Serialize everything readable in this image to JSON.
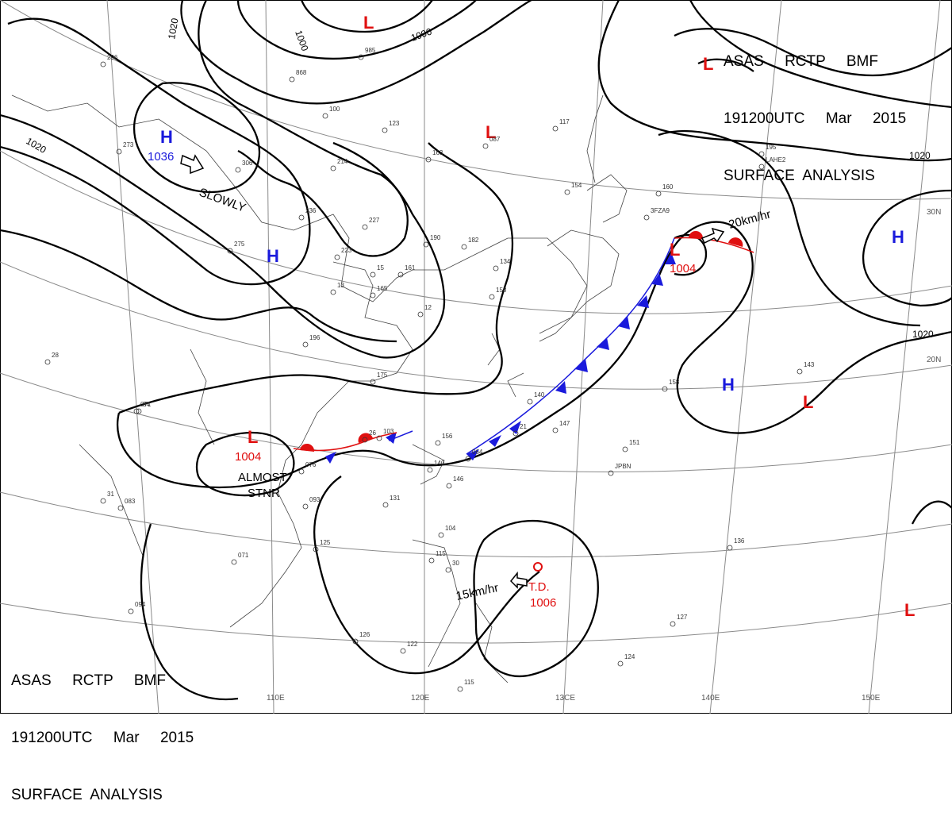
{
  "header": {
    "line1": "ASAS     RCTP     BMF",
    "line2": "191200UTC     Mar     2015",
    "line3": "SURFACE  ANALYSIS"
  },
  "colors": {
    "high": "#1a1adc",
    "low": "#e01010",
    "front_cold": "#1a1adc",
    "front_warm": "#e01010",
    "isobar": "#000000",
    "grid": "#808080"
  },
  "longitude_labels": [
    "110E",
    "120E",
    "13CE",
    "140E",
    "150E"
  ],
  "latitude_labels": [
    "30N",
    "20N"
  ],
  "isobar_labels": [
    "1020",
    "1020",
    "1000",
    "1000",
    "1020",
    "1020"
  ],
  "pressure_systems": [
    {
      "type": "H",
      "value": "1036",
      "motion": "SLOWLY"
    },
    {
      "type": "H",
      "value": ""
    },
    {
      "type": "H",
      "value": ""
    },
    {
      "type": "H",
      "value": ""
    },
    {
      "type": "L",
      "value": "1004",
      "motion": "ALMOST\nSTNR"
    },
    {
      "type": "L",
      "value": "1004",
      "motion": "20km/hr"
    },
    {
      "type": "L",
      "value": ""
    },
    {
      "type": "L",
      "value": ""
    },
    {
      "type": "L",
      "value": ""
    },
    {
      "type": "L",
      "value": ""
    },
    {
      "type": "L",
      "value": ""
    },
    {
      "type": "T.D.",
      "value": "1006",
      "motion": "15km/hr"
    }
  ],
  "station_labels": [
    "296",
    "273",
    "306",
    "214",
    "236",
    "227",
    "223",
    "275",
    "196",
    "175",
    "161",
    "165",
    "190",
    "182",
    "134",
    "158",
    "123",
    "163",
    "087",
    "117",
    "154",
    "160",
    "195",
    "3FZA9",
    "JPBN",
    "LAHE2",
    "158",
    "143",
    "147",
    "151",
    "136",
    "104",
    "115",
    "126",
    "122",
    "115",
    "127",
    "124",
    "131",
    "125",
    "071",
    "083",
    "094",
    "076",
    "093",
    "064",
    "071",
    "103",
    "156",
    "140",
    "146",
    "140",
    "985",
    "868",
    "100",
    "12",
    "13",
    "15",
    "21",
    "26",
    "28",
    "34",
    "31",
    "30"
  ]
}
